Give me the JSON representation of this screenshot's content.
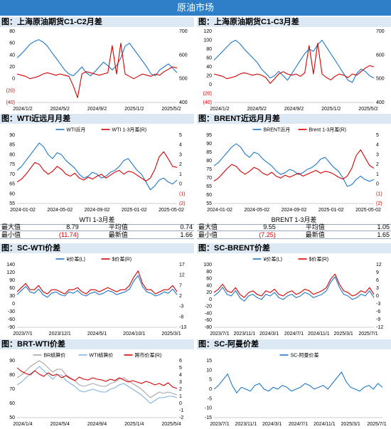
{
  "page": {
    "title": "原油市场"
  },
  "colors": {
    "banner": "#2e7fc7",
    "blue": "#1f77c8",
    "red": "#d40000",
    "gray": "#a6a6a6",
    "lightblue": "#7fb2e0",
    "header_bg": "#dce8f4"
  },
  "sections": {
    "c1c2": "图：上海原油期货C1-C2月差",
    "c1c3": "图：上海原油期货C1-C3月差",
    "wti": "图：WTI近远月月差",
    "brent": "图：BRENT近远月月差",
    "sc_wti": "图：SC-WTI价差",
    "sc_brent": "图：SC-BRENT价差",
    "brt_wti": "图：BRT-WTI价差",
    "sc_oman": "图：SC-阿曼价差"
  },
  "wti_stats": {
    "title": "WTI 1-3月差",
    "max_label": "最大值",
    "max": "8.79",
    "avg_label": "平均值",
    "avg": "0.74",
    "min_label": "最小值",
    "min": "(11.74)",
    "latest_label": "最新值",
    "latest": "1.66"
  },
  "brent_stats": {
    "title": "BRENT 1-3月差",
    "max_label": "最大值",
    "max": "9.55",
    "avg_label": "平均值",
    "avg": "1.05",
    "min_label": "最小值",
    "min": "(7.25)",
    "latest_label": "最新值",
    "latest": "1.65"
  },
  "chart_data": [
    {
      "id": "c1c2",
      "type": "line",
      "x_ticks": [
        "2024/1/2",
        "2024/5/2",
        "2024/9/2",
        "2025/1/2",
        "2025/5/2"
      ],
      "yleft": {
        "ticks": [
          "80",
          "60",
          "40",
          "20",
          "0",
          "(20)",
          "(40)"
        ],
        "range": [
          -40,
          80
        ]
      },
      "yright": {
        "ticks": [
          "700",
          "600",
          "500",
          "400"
        ],
        "range": [
          400,
          700
        ]
      },
      "series": [
        {
          "axis": "left",
          "color": "blue",
          "values": [
            35,
            42,
            50,
            58,
            63,
            66,
            62,
            55,
            45,
            35,
            25,
            15,
            8,
            5,
            12,
            20,
            10,
            5,
            12,
            20,
            28,
            22,
            15,
            22,
            35,
            55,
            60,
            50,
            40,
            30,
            20,
            8,
            5,
            15,
            20,
            25,
            18,
            10
          ]
        },
        {
          "axis": "right",
          "color": "red",
          "values": [
            520,
            515,
            510,
            500,
            505,
            510,
            520,
            525,
            520,
            515,
            520,
            515,
            510,
            470,
            420,
            520,
            530,
            525,
            520,
            515,
            520,
            525,
            640,
            520,
            650,
            520,
            510,
            500,
            510,
            520,
            515,
            510,
            520,
            515,
            530,
            540,
            550,
            545
          ]
        }
      ]
    },
    {
      "id": "c1c3",
      "type": "line",
      "x_ticks": [
        "2024/1/2",
        "2024/5/2",
        "2024/9/2",
        "2025/1/2",
        "2025/5/2"
      ],
      "yleft": {
        "ticks": [
          "120",
          "100",
          "80",
          "60",
          "40",
          "20",
          "0",
          "(20)",
          "(40)"
        ],
        "range": [
          -40,
          120
        ]
      },
      "yright": {
        "ticks": [
          "700",
          "600",
          "500",
          "400"
        ],
        "range": [
          400,
          700
        ]
      },
      "series": [
        {
          "axis": "left",
          "color": "blue",
          "values": [
            55,
            65,
            75,
            85,
            95,
            100,
            92,
            80,
            70,
            60,
            50,
            35,
            25,
            15,
            20,
            30,
            20,
            10,
            25,
            40,
            55,
            70,
            80,
            75,
            90,
            100,
            85,
            70,
            55,
            40,
            25,
            10,
            5,
            25,
            35,
            30,
            20,
            15
          ]
        },
        {
          "axis": "right",
          "color": "red",
          "values": [
            520,
            515,
            510,
            500,
            505,
            510,
            520,
            525,
            520,
            515,
            520,
            515,
            505,
            480,
            500,
            520,
            530,
            520,
            515,
            520,
            510,
            525,
            640,
            520,
            650,
            520,
            505,
            495,
            510,
            520,
            515,
            505,
            520,
            515,
            530,
            545,
            555,
            550
          ]
        }
      ]
    },
    {
      "id": "wti",
      "type": "line",
      "x_ticks": [
        "2024-01-02",
        "2024-05-02",
        "2024-09-02",
        "2025-01-02",
        "2025-05-02"
      ],
      "yleft": {
        "ticks": [
          "90",
          "85",
          "80",
          "75",
          "70",
          "65",
          "60",
          "55"
        ],
        "range": [
          55,
          90
        ]
      },
      "yright": {
        "ticks": [
          "5",
          "4",
          "3",
          "2",
          "1",
          "0",
          "(1)",
          "(2)"
        ],
        "range": [
          -2,
          5
        ]
      },
      "legend": [
        "WTI近月",
        "WTI 1-3月差(R)"
      ],
      "series": [
        {
          "name": "WTI近月",
          "axis": "left",
          "color": "blue",
          "values": [
            72,
            74,
            77,
            80,
            83,
            86,
            84,
            80,
            78,
            81,
            80,
            77,
            75,
            73,
            70,
            68,
            69,
            71,
            70,
            68,
            69,
            71,
            72,
            74,
            77,
            78,
            75,
            72,
            70,
            66,
            62,
            64,
            67,
            68,
            66,
            65,
            67
          ]
        },
        {
          "name": "WTI 1-3月差(R)",
          "axis": "right",
          "color": "red",
          "values": [
            0.2,
            0.5,
            1.0,
            1.6,
            2.2,
            2.0,
            1.4,
            1.0,
            1.3,
            1.8,
            1.5,
            1.0,
            0.8,
            1.1,
            0.6,
            0.4,
            0.7,
            0.5,
            0.8,
            1.0,
            0.6,
            0.9,
            1.2,
            1.4,
            1.0,
            1.3,
            1.2,
            0.9,
            0.6,
            0.3,
            0.6,
            1.5,
            2.8,
            3.3,
            2.6,
            1.8,
            1.7
          ]
        }
      ]
    },
    {
      "id": "brent",
      "type": "line",
      "x_ticks": [
        "2024-01-02",
        "2024-05-02",
        "2024-09-02",
        "2025-01-02",
        "2025-05-02"
      ],
      "yleft": {
        "ticks": [
          "95",
          "90",
          "85",
          "80",
          "75",
          "70",
          "65",
          "60",
          "55"
        ],
        "range": [
          55,
          95
        ]
      },
      "yright": {
        "ticks": [
          "5",
          "4",
          "3",
          "2",
          "1",
          "0",
          "(1)",
          "(2)"
        ],
        "range": [
          -2,
          5
        ]
      },
      "legend": [
        "BRENT近月",
        "Brent 1-3月差(R)"
      ],
      "series": [
        {
          "name": "BRENT近月",
          "axis": "left",
          "color": "blue",
          "values": [
            77,
            79,
            82,
            85,
            88,
            90,
            88,
            84,
            82,
            85,
            84,
            81,
            79,
            77,
            74,
            72,
            73,
            75,
            74,
            72,
            73,
            75,
            76,
            78,
            81,
            82,
            79,
            76,
            74,
            70,
            65,
            66,
            69,
            71,
            69,
            68,
            69
          ]
        },
        {
          "name": "Brent 1-3月差(R)",
          "axis": "right",
          "color": "red",
          "values": [
            0.3,
            0.6,
            1.1,
            1.6,
            2.0,
            1.8,
            1.3,
            1.0,
            1.3,
            1.7,
            1.5,
            1.1,
            0.9,
            1.2,
            0.8,
            0.6,
            0.9,
            0.7,
            0.9,
            1.1,
            0.8,
            1.0,
            1.2,
            1.4,
            1.1,
            1.3,
            1.2,
            1.0,
            0.7,
            0.5,
            0.8,
            1.6,
            2.9,
            3.5,
            2.7,
            1.9,
            1.6
          ]
        }
      ]
    },
    {
      "id": "sc_wti",
      "type": "line",
      "x_ticks": [
        "2023/7/1",
        "2023/12/1",
        "2024/5/1",
        "2024/10/1",
        "2025/3/1"
      ],
      "yleft": {
        "ticks": [
          "140",
          "120",
          "90",
          "60",
          "30",
          "0",
          "-30",
          "-60",
          "-90"
        ],
        "range": [
          -90,
          140
        ]
      },
      "yright": {
        "ticks": [
          "17",
          "12",
          "7",
          "2",
          "-3",
          "-8",
          "-13"
        ],
        "range": [
          -13,
          17
        ]
      },
      "legend": [
        "¥价差(L)",
        "$价差(R)"
      ],
      "series": [
        {
          "name": "¥价差(L)",
          "axis": "left",
          "color": "blue",
          "values": [
            30,
            45,
            60,
            40,
            35,
            50,
            30,
            20,
            35,
            40,
            30,
            25,
            40,
            35,
            45,
            30,
            25,
            35,
            40,
            30,
            35,
            45,
            40,
            30,
            35,
            40,
            50,
            80,
            100,
            60,
            40,
            35,
            25,
            30,
            40,
            35,
            50,
            30
          ]
        },
        {
          "name": "$价差(R)",
          "axis": "right",
          "color": "red",
          "values": [
            4,
            6,
            8,
            5,
            5,
            7,
            4,
            3,
            5,
            5,
            4,
            3,
            5,
            5,
            6,
            4,
            3,
            5,
            5,
            4,
            5,
            6,
            5,
            4,
            5,
            5,
            7,
            11,
            14,
            8,
            5,
            5,
            3,
            4,
            5,
            5,
            7,
            4
          ]
        }
      ]
    },
    {
      "id": "sc_brent",
      "type": "line",
      "x_ticks": [
        "2023/7/1",
        "2023/11/1",
        "2024/3/1",
        "2024/7/1",
        "2024/11/1",
        "2025/3/1",
        "2025/7/1"
      ],
      "yleft": {
        "ticks": [
          "100",
          "80",
          "60",
          "40",
          "20",
          "0",
          "-20",
          "-40",
          "-60",
          "-80"
        ],
        "range": [
          -80,
          100
        ]
      },
      "yright": {
        "ticks": [
          "12",
          "9",
          "6",
          "3",
          "0",
          "-3",
          "-6",
          "-9",
          "-12"
        ],
        "range": [
          -12,
          12
        ]
      },
      "legend": [
        "¥价差(L)",
        "$价差(R)"
      ],
      "series": [
        {
          "name": "¥价差(L)",
          "axis": "left",
          "color": "blue",
          "values": [
            10,
            20,
            35,
            15,
            10,
            25,
            5,
            -5,
            10,
            15,
            5,
            0,
            15,
            10,
            20,
            5,
            0,
            10,
            15,
            5,
            10,
            20,
            15,
            5,
            10,
            15,
            25,
            50,
            65,
            35,
            15,
            10,
            0,
            5,
            15,
            10,
            25,
            5
          ]
        },
        {
          "name": "$价差(R)",
          "axis": "right",
          "color": "red",
          "values": [
            1.3,
            2.6,
            4.5,
            2,
            1.3,
            3.2,
            0.6,
            -0.6,
            1.3,
            2,
            0.6,
            0,
            2,
            1.3,
            2.6,
            0.6,
            0,
            1.3,
            2,
            0.6,
            1.3,
            2.6,
            2,
            0.6,
            1.3,
            2,
            3.2,
            6.5,
            8.4,
            4.5,
            2,
            1.3,
            0,
            0.6,
            2,
            1.3,
            3.2,
            0.6
          ]
        }
      ]
    },
    {
      "id": "brt_wti",
      "type": "line",
      "x_ticks": [
        "2024/1/4",
        "2024/5/4",
        "2024/9/4",
        "2025/1/4",
        "2025/5/4"
      ],
      "yleft": {
        "ticks": [
          "90",
          "80",
          "70",
          "60",
          "50"
        ],
        "range": [
          50,
          90
        ]
      },
      "yright": {
        "ticks": [
          "6",
          "5",
          "4",
          "3",
          "2",
          "1",
          "0",
          "-1",
          "-2"
        ],
        "range": [
          -2,
          6
        ]
      },
      "legend": [
        "BR结算价",
        "WTI结算价",
        "跨市价差(R)"
      ],
      "series": [
        {
          "name": "BR结算价",
          "axis": "left",
          "color": "gray",
          "values": [
            78,
            80,
            83,
            86,
            88,
            90,
            88,
            85,
            82,
            84,
            84,
            80,
            78,
            76,
            73,
            72,
            73,
            74,
            73,
            72,
            72,
            74,
            75,
            77,
            78,
            76,
            74,
            72,
            70,
            67,
            64,
            66,
            68,
            67,
            68,
            67,
            66
          ]
        },
        {
          "name": "WTI结算价",
          "axis": "left",
          "color": "lightblue",
          "values": [
            73,
            75,
            78,
            81,
            83,
            86,
            83,
            80,
            77,
            80,
            80,
            76,
            74,
            72,
            69,
            68,
            69,
            70,
            69,
            68,
            68,
            70,
            71,
            73,
            74,
            72,
            70,
            68,
            66,
            63,
            60,
            62,
            64,
            64,
            65,
            65,
            64
          ]
        },
        {
          "name": "跨市价差(R)",
          "axis": "right",
          "color": "red",
          "values": [
            5.0,
            4.5,
            4.2,
            4.0,
            4.6,
            4.1,
            3.8,
            4.3,
            3.9,
            4.1,
            3.6,
            3.9,
            3.5,
            3.2,
            3.7,
            3.4,
            3.3,
            3.6,
            3.4,
            3.3,
            3.1,
            3.4,
            3.2,
            3.6,
            3.3,
            3.0,
            3.2,
            3.0,
            2.8,
            3.1,
            2.9,
            2.6,
            2.8,
            2.5,
            2.9,
            2.3,
            2.1
          ]
        }
      ]
    },
    {
      "id": "sc_oman",
      "type": "line",
      "x_ticks": [
        "2023/7/1",
        "2023/11/1",
        "2024/3/1",
        "2024/7/1",
        "2024/11/1",
        "2025/3/1",
        "2025/7/1"
      ],
      "yleft": {
        "ticks": [
          "15",
          "10",
          "5",
          "0",
          "-5",
          "-10",
          "-15"
        ],
        "range": [
          -15,
          15
        ]
      },
      "legend": [
        "SC-阿曼价差"
      ],
      "series": [
        {
          "name": "SC-阿曼价差",
          "axis": "left",
          "color": "blue",
          "values": [
            0,
            2,
            5,
            8,
            2,
            -2,
            1,
            0,
            -1,
            2,
            3,
            0,
            -1,
            1,
            0,
            2,
            1,
            -1,
            0,
            1,
            3,
            2,
            0,
            1,
            2,
            0,
            3,
            6,
            9,
            4,
            1,
            0,
            -1,
            1,
            2,
            0,
            3,
            1
          ]
        }
      ]
    }
  ]
}
